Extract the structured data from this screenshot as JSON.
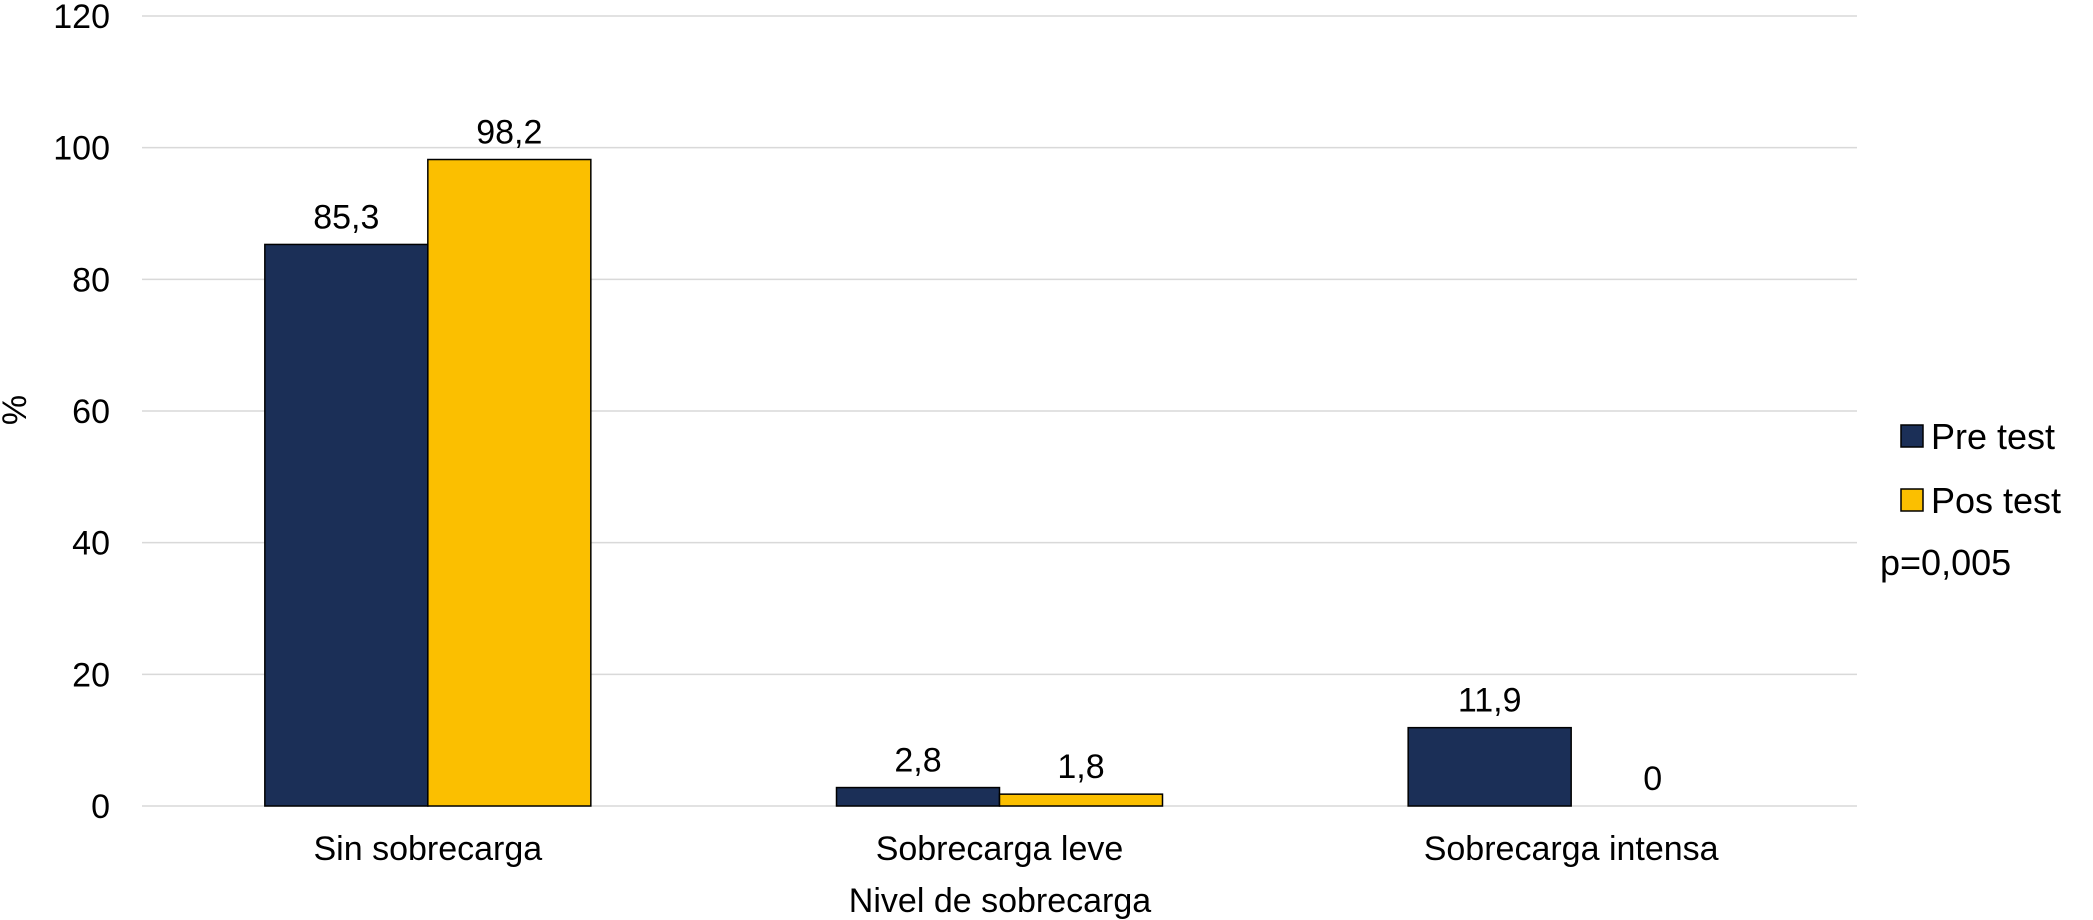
{
  "chart_data": {
    "type": "bar",
    "categories": [
      "Sin sobrecarga",
      "Sobrecarga leve",
      "Sobrecarga intensa"
    ],
    "series": [
      {
        "name": "Pre test",
        "values": [
          85.3,
          2.8,
          11.9
        ],
        "labels": [
          "85,3",
          "2,8",
          "11,9"
        ],
        "color": "#1b2f57"
      },
      {
        "name": "Pos test",
        "values": [
          98.2,
          1.8,
          0
        ],
        "labels": [
          "98,2",
          "1,8",
          "0"
        ],
        "color": "#fbbf00"
      }
    ],
    "xlabel": "Nivel de sobrecarga",
    "ylabel": "%",
    "ylim": [
      0,
      120
    ],
    "yticks": [
      0,
      20,
      40,
      60,
      80,
      100,
      120
    ],
    "grid": true,
    "legend_position": "right",
    "annotation": "p=0,005"
  },
  "colors": {
    "grid": "#d9d9d9",
    "bar_outline": "#000000",
    "text": "#000000"
  }
}
